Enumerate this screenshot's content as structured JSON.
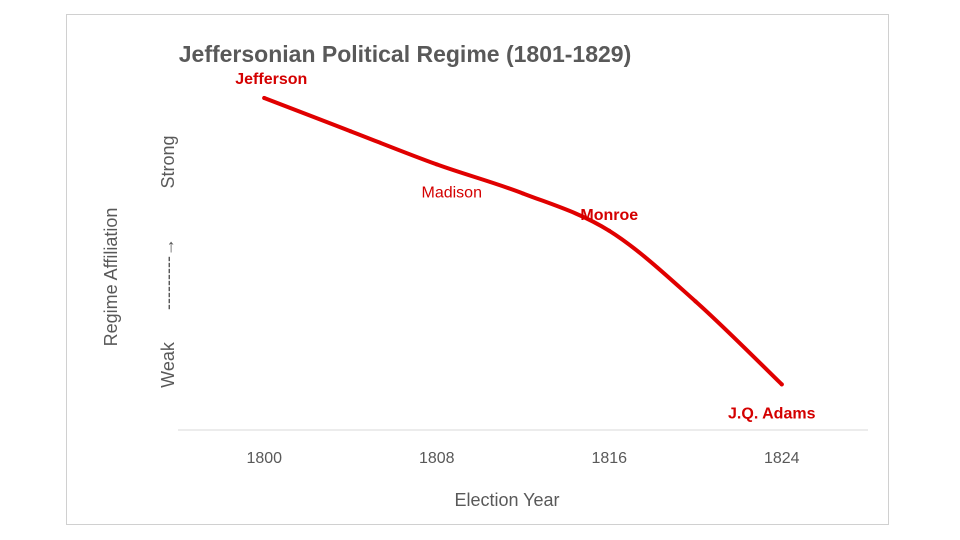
{
  "chart_data": {
    "type": "line",
    "title": "Jeffersonian Political Regime (1801-1829)",
    "xlabel": "Election Year",
    "ylabel": "Regime Affiliation",
    "y_axis_labels": {
      "low": "Weak",
      "arrow": "---------→",
      "high": "Strong"
    },
    "x_ticks": [
      1800,
      1808,
      1816,
      1824
    ],
    "xlim": [
      1796,
      1828
    ],
    "ylim": [
      0,
      10
    ],
    "grid": false,
    "series": [
      {
        "color": "#e00000",
        "points": [
          {
            "x": 1800,
            "y": 8.0
          },
          {
            "x": 1804,
            "y": 7.2
          },
          {
            "x": 1808,
            "y": 6.4
          },
          {
            "x": 1812,
            "y": 5.7
          },
          {
            "x": 1816,
            "y": 4.8
          },
          {
            "x": 1820,
            "y": 3.1
          },
          {
            "x": 1824,
            "y": 1.1
          }
        ]
      }
    ],
    "annotations": [
      {
        "text": "Jefferson",
        "x": 1800,
        "y": 8.0,
        "bold": true
      },
      {
        "text": "Madison",
        "x": 1808,
        "y": 6.4,
        "bold": false
      },
      {
        "text": "Monroe",
        "x": 1816,
        "y": 4.8,
        "bold": true
      },
      {
        "text": "J.Q. Adams",
        "x": 1824,
        "y": 1.1,
        "bold": true
      }
    ]
  }
}
